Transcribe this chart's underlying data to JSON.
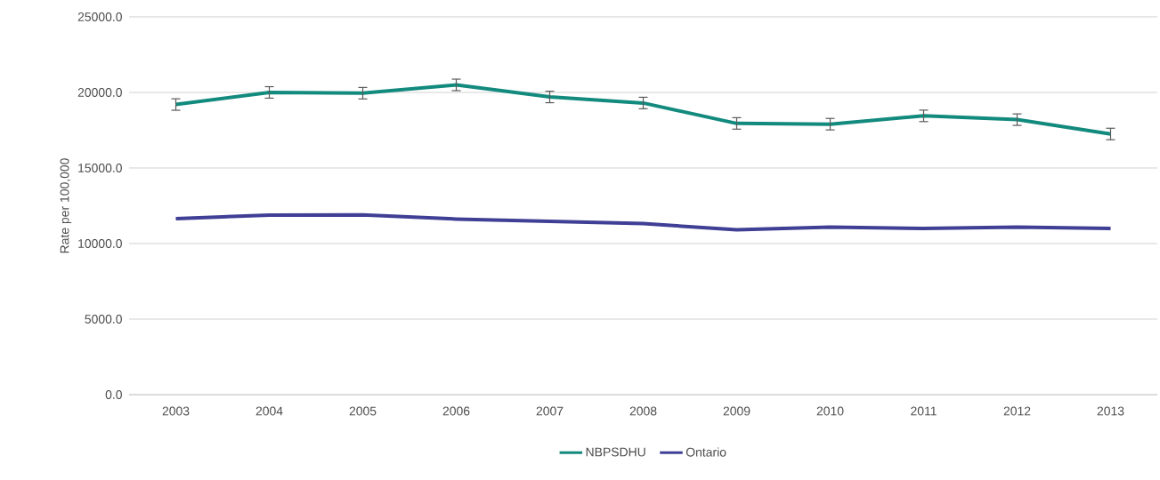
{
  "chart_data": {
    "type": "line",
    "ylabel": "Rate per 100,000",
    "categories": [
      "2003",
      "2004",
      "2005",
      "2006",
      "2007",
      "2008",
      "2009",
      "2010",
      "2011",
      "2012",
      "2013"
    ],
    "series": [
      {
        "name": "NBPSDHU",
        "color": "#138a7e",
        "values": [
          19200,
          20000,
          19950,
          20500,
          19700,
          19300,
          17950,
          17900,
          18450,
          18200,
          17250
        ],
        "errors": [
          380,
          380,
          380,
          380,
          380,
          380,
          380,
          380,
          380,
          380,
          380
        ]
      },
      {
        "name": "Ontario",
        "color": "#3f3f96",
        "values": [
          11650,
          11880,
          11900,
          11620,
          11470,
          11320,
          10910,
          11090,
          11000,
          11090,
          11000
        ]
      }
    ],
    "ylim": [
      0,
      25000
    ],
    "yticks": [
      {
        "value": 0,
        "label": "0.0"
      },
      {
        "value": 5000,
        "label": "5000.0"
      },
      {
        "value": 10000,
        "label": "10000.0"
      },
      {
        "value": 15000,
        "label": "15000.0"
      },
      {
        "value": 20000,
        "label": "20000.0"
      },
      {
        "value": 25000,
        "label": "25000.0"
      }
    ],
    "grid": "y",
    "legend": "bottom",
    "marker": "none",
    "line_style": "solid"
  }
}
